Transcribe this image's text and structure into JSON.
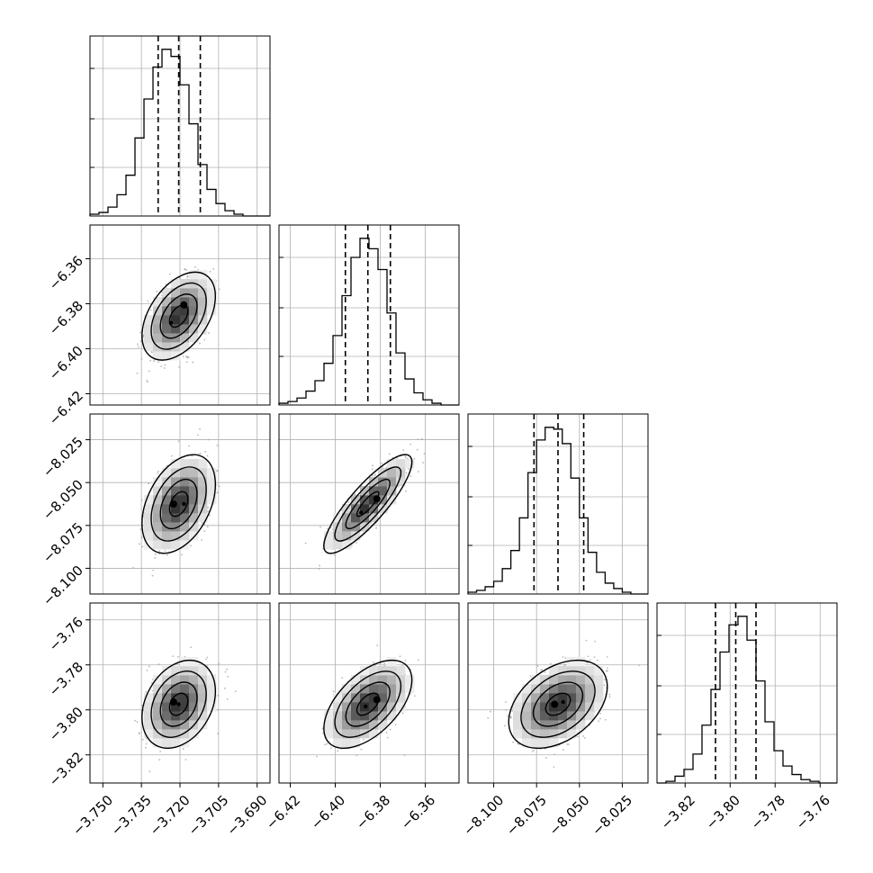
{
  "chart_data": {
    "type": "corner",
    "title": "",
    "parameters": [
      {
        "label": "",
        "range": [
          -3.755,
          -3.685
        ],
        "ticks": [
          -3.75,
          -3.735,
          -3.72,
          -3.705,
          -3.69
        ],
        "tick_labels": [
          "−3.750",
          "−3.735",
          "−3.720",
          "−3.705",
          "−3.690"
        ],
        "quantiles": [
          -3.7285,
          -3.7205,
          -3.7121
        ],
        "histogram": {
          "edges": [
            -3.755,
            -3.7515,
            -3.748,
            -3.7445,
            -3.741,
            -3.7375,
            -3.734,
            -3.7305,
            -3.727,
            -3.7235,
            -3.72,
            -3.7165,
            -3.713,
            -3.7095,
            -3.706,
            -3.7025,
            -3.699,
            -3.6955,
            -3.692,
            -3.6885,
            -3.685
          ],
          "counts": [
            1,
            2,
            5,
            12,
            23,
            44,
            66,
            84,
            94,
            90,
            74,
            52,
            29,
            15,
            7,
            3,
            1,
            0,
            0,
            0
          ]
        }
      },
      {
        "label": "",
        "range": [
          -6.425,
          -6.345
        ],
        "ticks": [
          -6.42,
          -6.4,
          -6.38,
          -6.36
        ],
        "tick_labels": [
          "−6.42",
          "−6.40",
          "−6.38",
          "−6.36"
        ],
        "quantiles": [
          -6.3955,
          -6.3855,
          -6.3755
        ],
        "histogram": {
          "edges": [
            -6.425,
            -6.421,
            -6.417,
            -6.413,
            -6.409,
            -6.405,
            -6.401,
            -6.397,
            -6.393,
            -6.389,
            -6.385,
            -6.381,
            -6.377,
            -6.373,
            -6.369,
            -6.365,
            -6.361,
            -6.357,
            -6.353,
            -6.349,
            -6.345
          ],
          "counts": [
            1,
            2,
            4,
            8,
            14,
            24,
            40,
            63,
            85,
            96,
            90,
            78,
            53,
            30,
            15,
            7,
            3,
            1,
            0,
            0
          ]
        }
      },
      {
        "label": "",
        "range": [
          -8.115,
          -8.01
        ],
        "ticks": [
          -8.1,
          -8.075,
          -8.05,
          -8.025
        ],
        "tick_labels": [
          "−8.100",
          "−8.075",
          "−8.050",
          "−8.025"
        ],
        "quantiles": [
          -8.0765,
          -8.0625,
          -8.0475
        ],
        "histogram": {
          "edges": [
            -8.115,
            -8.11,
            -8.105,
            -8.1,
            -8.095,
            -8.09,
            -8.085,
            -8.08,
            -8.075,
            -8.07,
            -8.065,
            -8.06,
            -8.055,
            -8.05,
            -8.045,
            -8.04,
            -8.035,
            -8.03,
            -8.025,
            -8.02,
            -8.015,
            -8.01
          ],
          "counts": [
            1,
            2,
            4,
            7,
            14,
            24,
            42,
            67,
            85,
            92,
            91,
            83,
            64,
            42,
            23,
            12,
            6,
            3,
            1,
            0,
            0
          ]
        }
      },
      {
        "label": "",
        "range": [
          -3.8325,
          -3.7525
        ],
        "ticks": [
          -3.82,
          -3.8,
          -3.78,
          -3.76
        ],
        "tick_labels": [
          "−3.82",
          "−3.80",
          "−3.78",
          "−3.76"
        ],
        "quantiles": [
          -3.8065,
          -3.7975,
          -3.7885
        ],
        "histogram": {
          "edges": [
            -3.8325,
            -3.8285,
            -3.8245,
            -3.8205,
            -3.8165,
            -3.8125,
            -3.8085,
            -3.8045,
            -3.8005,
            -3.7965,
            -3.7925,
            -3.7885,
            -3.7845,
            -3.7805,
            -3.7765,
            -3.7725,
            -3.7685,
            -3.7645,
            -3.7605,
            -3.7565,
            -3.7525
          ],
          "counts": [
            0,
            1,
            4,
            8,
            17,
            34,
            55,
            77,
            93,
            98,
            84,
            60,
            36,
            19,
            10,
            5,
            2,
            1,
            0,
            0
          ]
        }
      }
    ],
    "pairs": [
      {
        "row": 1,
        "col": 0,
        "center": [
          -3.7205,
          -6.3855
        ],
        "sigma": [
          0.0062,
          0.0085
        ],
        "rho": 0.45,
        "peaks": [
          [
            -3.7185,
            -6.3805
          ],
          [
            -3.7235,
            -6.3885
          ]
        ]
      },
      {
        "row": 2,
        "col": 0,
        "center": [
          -3.7205,
          -8.0625
        ],
        "sigma": [
          0.0062,
          0.0125
        ],
        "rho": 0.4,
        "peaks": [
          [
            -3.7225,
            -8.0625
          ],
          [
            -3.7185,
            -8.0625
          ]
        ]
      },
      {
        "row": 2,
        "col": 1,
        "center": [
          -6.3855,
          -8.0625
        ],
        "sigma": [
          0.0085,
          0.0125
        ],
        "rho": 0.85,
        "peaks": [
          [
            -6.3815,
            -8.0595
          ],
          [
            -6.3885,
            -8.0675
          ]
        ]
      },
      {
        "row": 3,
        "col": 0,
        "center": [
          -3.7205,
          -3.7975
        ],
        "sigma": [
          0.0062,
          0.0085
        ],
        "rho": 0.3,
        "peaks": [
          [
            -3.7225,
            -3.7965
          ],
          [
            -3.7205,
            -3.7975
          ]
        ]
      },
      {
        "row": 3,
        "col": 1,
        "center": [
          -6.3855,
          -3.7975
        ],
        "sigma": [
          0.0085,
          0.0085
        ],
        "rho": 0.55,
        "peaks": [
          [
            -6.3815,
            -3.7955
          ],
          [
            -6.3865,
            -3.7985
          ]
        ]
      },
      {
        "row": 3,
        "col": 2,
        "center": [
          -8.0625,
          -3.7975
        ],
        "sigma": [
          0.0125,
          0.0085
        ],
        "rho": 0.4,
        "peaks": [
          [
            -8.0645,
            -3.7975
          ],
          [
            -8.0595,
            -3.7965
          ]
        ]
      }
    ],
    "contour_levels": [
      "0.5 sigma",
      "1 sigma",
      "1.5 sigma",
      "2 sigma"
    ],
    "grid": true,
    "legend": "none",
    "colors": {
      "line": "#000000",
      "grid": "#b0b0b0",
      "scatter": "#a0a0a0",
      "fill_light": "#ffffff",
      "fill_dark": "#2e2e2e"
    }
  }
}
